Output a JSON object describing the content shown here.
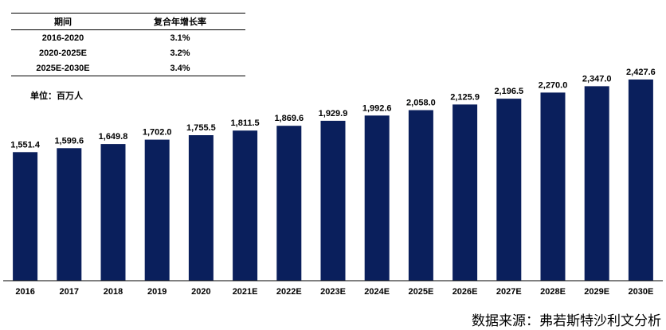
{
  "cagr_table": {
    "headers": [
      "期间",
      "复合年增长率"
    ],
    "rows": [
      [
        "2016-2020",
        "3.1%"
      ],
      [
        "2020-2025E",
        "3.2%"
      ],
      [
        "2025E-2030E",
        "3.4%"
      ]
    ]
  },
  "unit_label": "单位：百万人",
  "source": "数据来源：弗若斯特沙利文分析",
  "chart_data": {
    "type": "bar",
    "title": "",
    "xlabel": "",
    "ylabel": "单位：百万人",
    "categories": [
      "2016",
      "2017",
      "2018",
      "2019",
      "2020",
      "2021E",
      "2022E",
      "2023E",
      "2024E",
      "2025E",
      "2026E",
      "2027E",
      "2028E",
      "2029E",
      "2030E"
    ],
    "values": [
      1551.4,
      1599.6,
      1649.8,
      1702.0,
      1755.5,
      1811.5,
      1869.6,
      1929.9,
      1992.6,
      2058.0,
      2125.9,
      2196.5,
      2270.0,
      2347.0,
      2427.6
    ],
    "value_labels": [
      "1,551.4",
      "1,599.6",
      "1,649.8",
      "1,702.0",
      "1,755.5",
      "1,811.5",
      "1,869.6",
      "1,929.9",
      "1,992.6",
      "2,058.0",
      "2,125.9",
      "2,196.5",
      "2,270.0",
      "2,347.0",
      "2,427.6"
    ],
    "ylim": [
      0,
      2427.6
    ],
    "bar_color": "#0a1f5c",
    "grid": false
  }
}
